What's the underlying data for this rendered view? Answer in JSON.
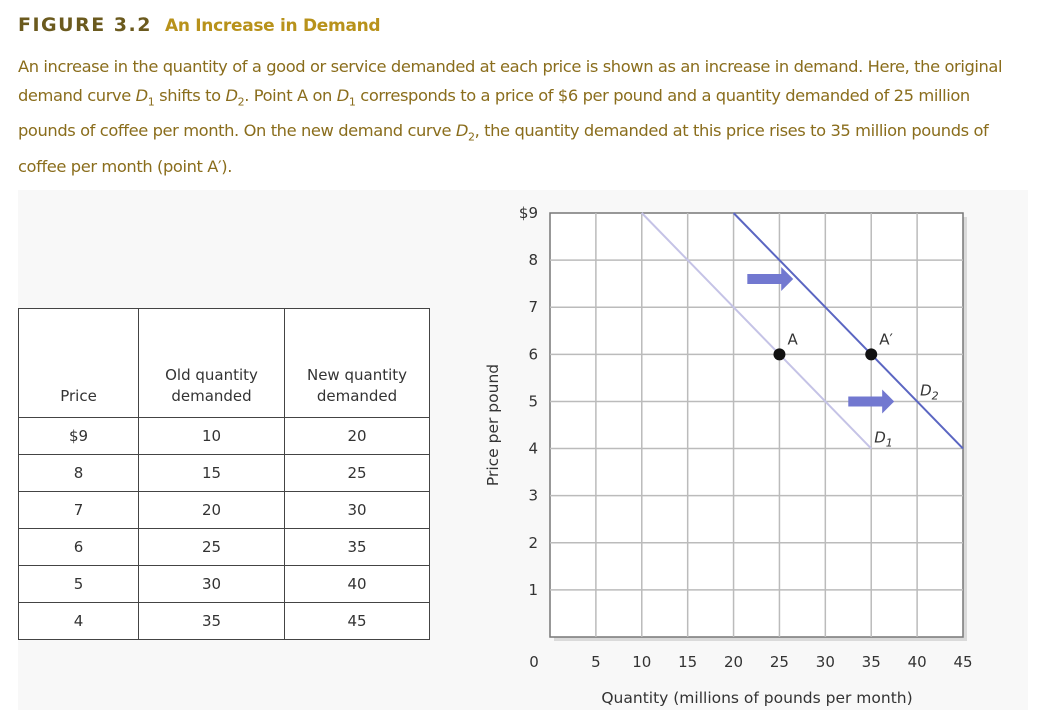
{
  "figure": {
    "label": "FIGURE 3.2",
    "title": "An Increase in Demand",
    "caption": "An increase in the quantity of a good or service demanded at each price is shown as an increase in demand. Here, the original demand curve D₁ shifts to D₂. Point A on D₁ corresponds to a price of $6 per pound and a quantity demanded of 25 million pounds of coffee per month. On the new demand curve D₂, the quantity demanded at this price rises to 35 million pounds of coffee per month (point A′)."
  },
  "table": {
    "headers": [
      "Price",
      "Old quantity demanded",
      "New quantity demanded"
    ],
    "rows": [
      [
        "$9",
        "10",
        "20"
      ],
      [
        "8",
        "15",
        "25"
      ],
      [
        "7",
        "20",
        "30"
      ],
      [
        "6",
        "25",
        "35"
      ],
      [
        "5",
        "30",
        "40"
      ],
      [
        "4",
        "35",
        "45"
      ]
    ]
  },
  "chart_data": {
    "type": "line",
    "xlabel": "Quantity (millions of pounds per month)",
    "ylabel": "Price per pound",
    "xlim": [
      0,
      45
    ],
    "ylim": [
      0,
      9
    ],
    "xticks": [
      "0",
      "5",
      "10",
      "15",
      "20",
      "25",
      "30",
      "35",
      "40",
      "45"
    ],
    "yticks": [
      "",
      "1",
      "2",
      "3",
      "4",
      "5",
      "6",
      "7",
      "8",
      "$9"
    ],
    "grid": true,
    "series": [
      {
        "name": "D1",
        "color": "#c5c3e6",
        "x": [
          10,
          15,
          20,
          25,
          30,
          35
        ],
        "y": [
          9,
          8,
          7,
          6,
          5,
          4
        ]
      },
      {
        "name": "D2",
        "color": "#5b66c2",
        "x": [
          20,
          25,
          30,
          35,
          40,
          45
        ],
        "y": [
          9,
          8,
          7,
          6,
          5,
          4
        ]
      }
    ],
    "points": [
      {
        "label": "A",
        "x": 25,
        "y": 6
      },
      {
        "label": "A′",
        "x": 35,
        "y": 6
      }
    ],
    "arrows": [
      {
        "from": [
          21.5,
          7.6
        ],
        "to": [
          26.5,
          7.6
        ]
      },
      {
        "from": [
          32.5,
          5
        ],
        "to": [
          37.5,
          5
        ]
      }
    ],
    "arrow_color": "#7278d0"
  }
}
